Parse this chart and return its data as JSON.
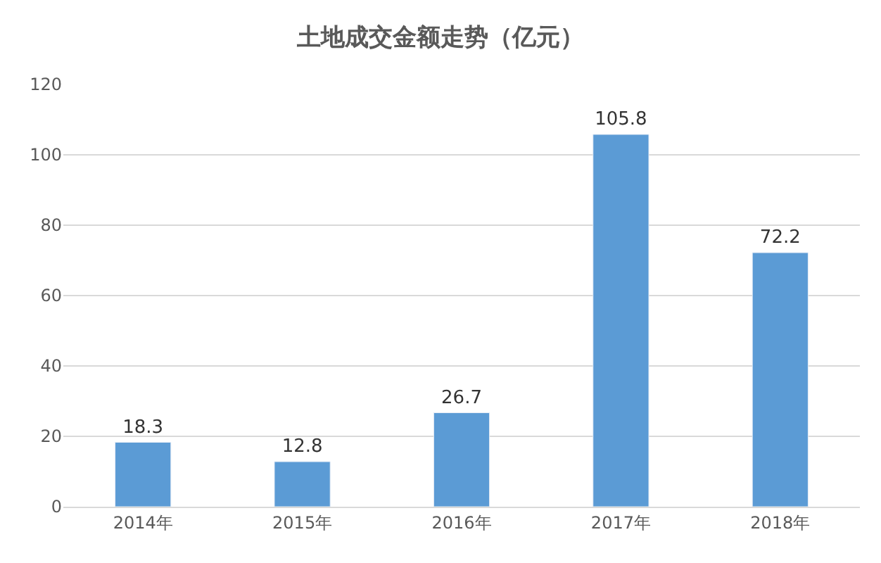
{
  "chart_data": {
    "type": "bar",
    "title": "土地成交金额走势（亿元）",
    "categories": [
      "2014年",
      "2015年",
      "2016年",
      "2017年",
      "2018年"
    ],
    "values": [
      18.3,
      12.8,
      26.7,
      105.8,
      72.2
    ],
    "color": "#5b9bd5",
    "ylim": [
      0,
      120
    ],
    "yticks": [
      0,
      20,
      40,
      60,
      80,
      100,
      120
    ],
    "grid": "y",
    "data_labels": true,
    "legend": false
  }
}
